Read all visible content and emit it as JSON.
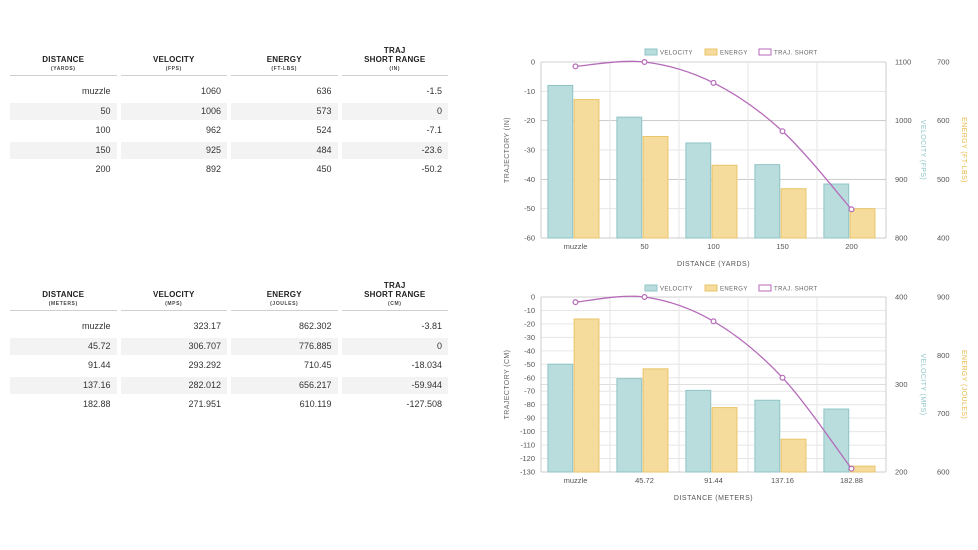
{
  "tables": [
    {
      "headers": [
        {
          "main": "DISTANCE",
          "sub": "(YARDS)"
        },
        {
          "main": "VELOCITY",
          "sub": "(FPS)"
        },
        {
          "main": "ENERGY",
          "sub": "(FT-LBS)"
        },
        {
          "main": "TRAJ\nSHORT RANGE",
          "sub": "(IN)"
        }
      ],
      "rows": [
        [
          "muzzle",
          "1060",
          "636",
          "-1.5"
        ],
        [
          "50",
          "1006",
          "573",
          "0"
        ],
        [
          "100",
          "962",
          "524",
          "-7.1"
        ],
        [
          "150",
          "925",
          "484",
          "-23.6"
        ],
        [
          "200",
          "892",
          "450",
          "-50.2"
        ]
      ]
    },
    {
      "headers": [
        {
          "main": "DISTANCE",
          "sub": "(METERS)"
        },
        {
          "main": "VELOCITY",
          "sub": "(MPS)"
        },
        {
          "main": "ENERGY",
          "sub": "(JOULES)"
        },
        {
          "main": "TRAJ\nSHORT RANGE",
          "sub": "(CM)"
        }
      ],
      "rows": [
        [
          "muzzle",
          "323.17",
          "862.302",
          "-3.81"
        ],
        [
          "45.72",
          "306.707",
          "776.885",
          "0"
        ],
        [
          "91.44",
          "293.292",
          "710.45",
          "-18.034"
        ],
        [
          "137.16",
          "282.012",
          "656.217",
          "-59.944"
        ],
        [
          "182.88",
          "271.951",
          "610.119",
          "-127.508"
        ]
      ]
    }
  ],
  "colors": {
    "velocity_fill": "#b9dcdd",
    "velocity_stroke": "#8ec5c7",
    "energy_fill": "#f5dc9c",
    "energy_stroke": "#eac56a",
    "traj": "#b56ab9",
    "grid": "#e6e6e6",
    "axis_line": "#cccccc"
  },
  "chart_data": [
    {
      "type": "bar",
      "categories": [
        "muzzle",
        "50",
        "100",
        "150",
        "200"
      ],
      "series": [
        {
          "name": "VELOCITY",
          "values": [
            1060,
            1006,
            962,
            925,
            892
          ],
          "axis": "right1"
        },
        {
          "name": "ENERGY",
          "values": [
            636,
            573,
            524,
            484,
            450
          ],
          "axis": "right2"
        },
        {
          "name": "TRAJ. SHORT",
          "type": "line",
          "values": [
            -1.5,
            0,
            -7.1,
            -23.6,
            -50.2
          ],
          "axis": "left"
        }
      ],
      "xlabel": "DISTANCE (YARDS)",
      "ylabel_left": "TRAJECTORY (IN)",
      "ylabel_right1": "VELOCITY (FPS)",
      "ylabel_right2": "ENERGY (FT-LBS)",
      "ylim_left": [
        -60,
        0
      ],
      "yticks_left": [
        0,
        -10,
        -20,
        -30,
        -40,
        -50,
        -60
      ],
      "ylim_right1": [
        800,
        1100
      ],
      "yticks_right1": [
        1100,
        1000,
        900,
        800
      ],
      "ylim_right2": [
        400,
        700
      ],
      "yticks_right2": [
        700,
        600,
        500,
        400
      ],
      "legend": [
        "VELOCITY",
        "ENERGY",
        "TRAJ. SHORT"
      ]
    },
    {
      "type": "bar",
      "categories": [
        "muzzle",
        "45.72",
        "91.44",
        "137.16",
        "182.88"
      ],
      "series": [
        {
          "name": "VELOCITY",
          "values": [
            323.17,
            306.707,
            293.292,
            282.012,
            271.951
          ],
          "axis": "right1"
        },
        {
          "name": "ENERGY",
          "values": [
            862.302,
            776.885,
            710.45,
            656.217,
            610.119
          ],
          "axis": "right2"
        },
        {
          "name": "TRAJ. SHORT",
          "type": "line",
          "values": [
            -3.81,
            0,
            -18.034,
            -59.944,
            -127.508
          ],
          "axis": "left"
        }
      ],
      "xlabel": "DISTANCE (METERS)",
      "ylabel_left": "TRAJECTORY (CM)",
      "ylabel_right1": "VELOCITY (MPS)",
      "ylabel_right2": "ENERGY (JOULES)",
      "ylim_left": [
        -130,
        0
      ],
      "yticks_left": [
        0,
        -10,
        -20,
        -30,
        -40,
        -50,
        -60,
        -70,
        -80,
        -90,
        -100,
        -110,
        -120,
        -130
      ],
      "ylim_right1": [
        200,
        400
      ],
      "yticks_right1": [
        400,
        300,
        200
      ],
      "ylim_right2": [
        600,
        900
      ],
      "yticks_right2": [
        900,
        800,
        700,
        600
      ],
      "legend": [
        "VELOCITY",
        "ENERGY",
        "TRAJ. SHORT"
      ]
    }
  ]
}
